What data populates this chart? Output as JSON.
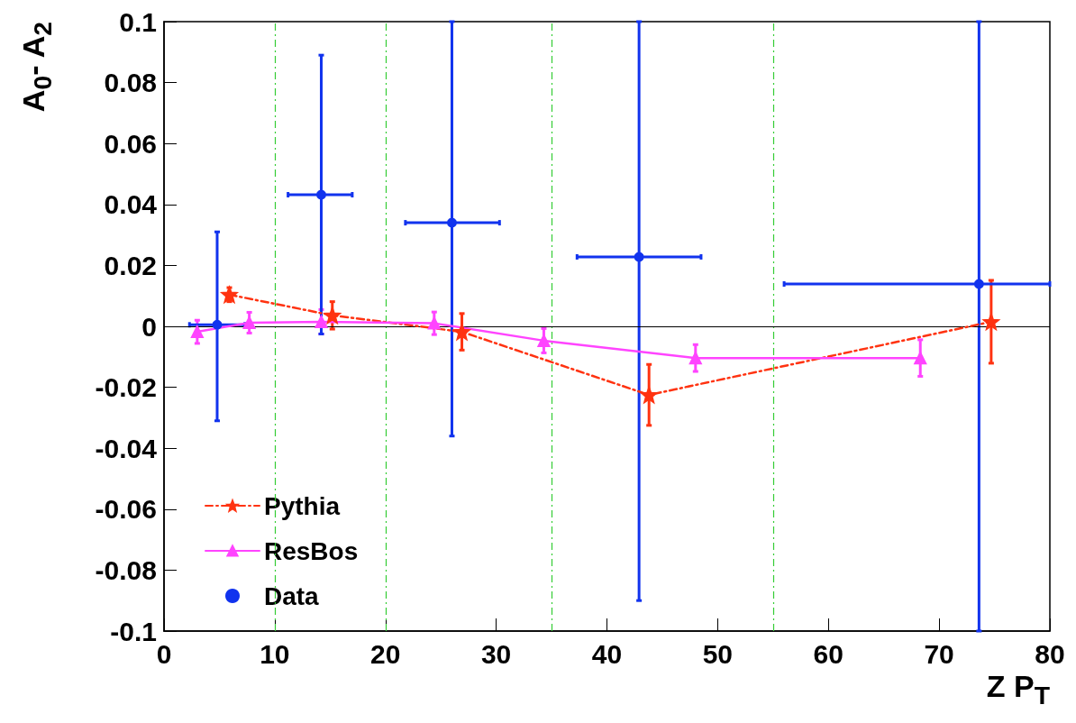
{
  "chart_data": {
    "type": "line",
    "xlabel": "Z P$_{T}$",
    "ylabel": "A$_{0}$- A$_{2}$",
    "xlim": [
      0,
      80
    ],
    "xticks": [
      0,
      10,
      20,
      30,
      40,
      50,
      60,
      70,
      80
    ],
    "ylim": [
      -0.1,
      0.1
    ],
    "yticks": [
      -0.1,
      -0.08,
      -0.06,
      -0.04,
      -0.02,
      0,
      0.02,
      0.04,
      0.06,
      0.08,
      0.1
    ],
    "grid": false,
    "legend": "bottom left",
    "ref_lines": [
      {
        "axis": "x",
        "value": 10,
        "color": "#33cc33",
        "line_style": "dashed"
      },
      {
        "axis": "x",
        "value": 20,
        "color": "#33cc33",
        "line_style": "dashed"
      },
      {
        "axis": "x",
        "value": 35,
        "color": "#33cc33",
        "line_style": "dashed"
      },
      {
        "axis": "x",
        "value": 55,
        "color": "#33cc33",
        "line_style": "dashed"
      },
      {
        "axis": "y",
        "value": 0,
        "color": "#000000",
        "line_style": "solid"
      }
    ],
    "series": [
      {
        "name": "Pythia",
        "color": "#ff3311",
        "marker": "star",
        "line_style": "dashed",
        "x": [
          5.9,
          15.2,
          26.9,
          43.8,
          74.7
        ],
        "values": [
          0.0104,
          0.0036,
          -0.0018,
          -0.0225,
          0.0015
        ],
        "errors": [
          0.0023,
          0.0045,
          0.006,
          0.01,
          0.0136
        ]
      },
      {
        "name": "ResBos",
        "color": "#ff44ff",
        "marker": "triangle",
        "line_style": "solid",
        "x": [
          3.0,
          7.7,
          14.2,
          24.4,
          34.3,
          48.0,
          68.3
        ],
        "values": [
          -0.0018,
          0.0012,
          0.0015,
          0.001,
          -0.0047,
          -0.0104,
          -0.0104
        ],
        "errors": [
          0.0038,
          0.0034,
          0.004,
          0.0037,
          0.004,
          0.0044,
          0.006
        ]
      },
      {
        "name": "Data",
        "type": "scatter",
        "color": "#1133ee",
        "marker": "circle",
        "x": [
          4.8,
          14.2,
          26.0,
          42.9,
          73.6
        ],
        "values": [
          0.0005,
          0.0432,
          0.034,
          0.0228,
          0.0139
        ],
        "errors": [
          [
            -0.031,
            0.031
          ],
          [
            -0.0025,
            0.089
          ],
          [
            -0.036,
            0.1
          ],
          [
            -0.09,
            0.1
          ],
          [
            -0.1,
            0.1
          ]
        ],
        "xerrors": [
          [
            2.3,
            7.3
          ],
          [
            11.2,
            17.0
          ],
          [
            21.8,
            30.3
          ],
          [
            37.3,
            48.5
          ],
          [
            56.0,
            80.0
          ]
        ]
      }
    ]
  }
}
